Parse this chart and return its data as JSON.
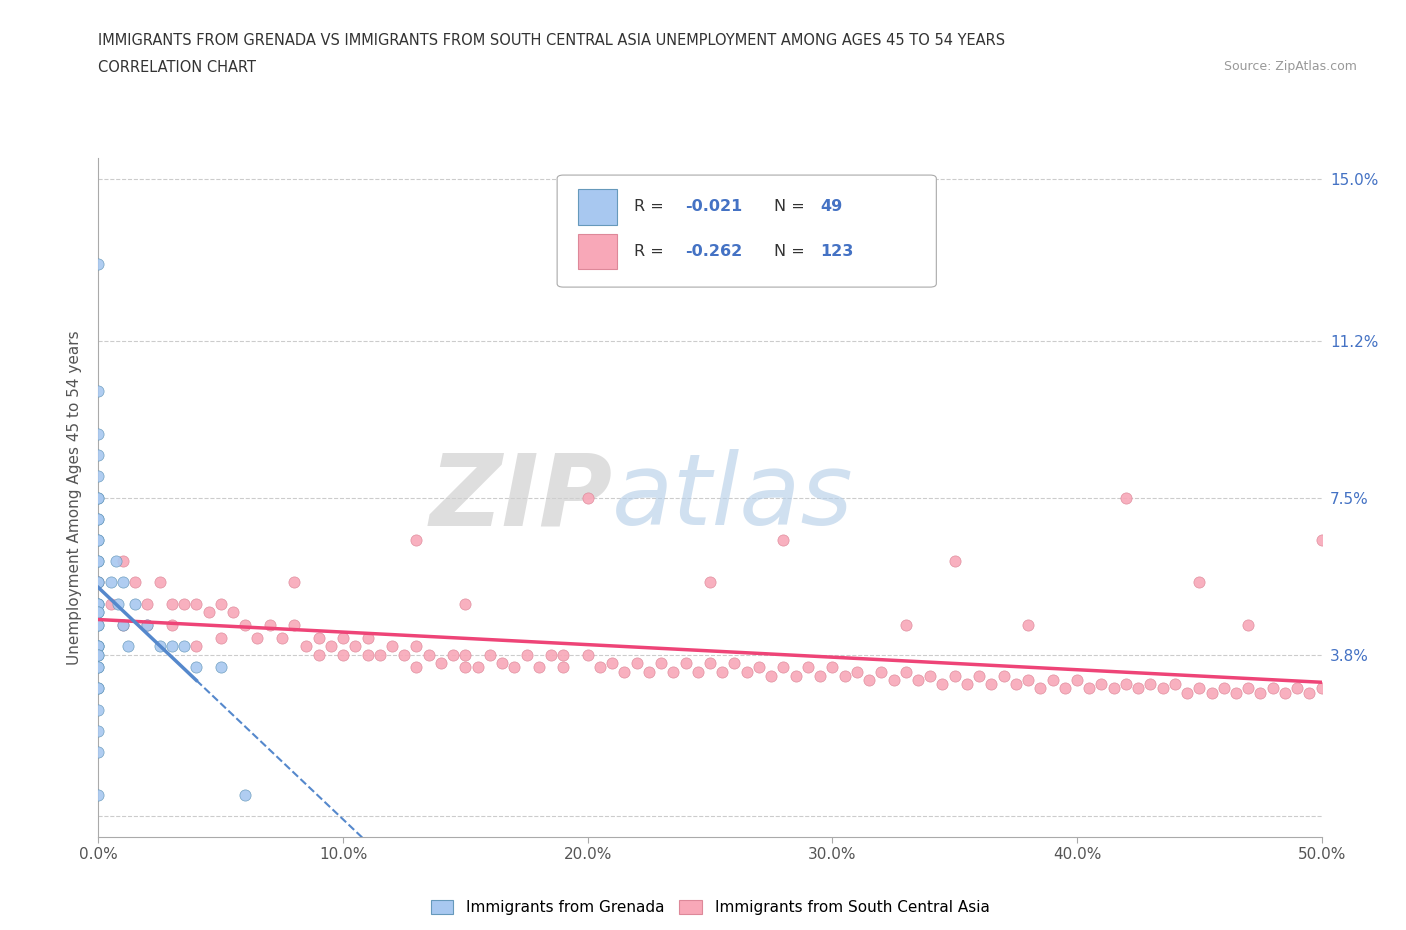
{
  "title_line1": "IMMIGRANTS FROM GRENADA VS IMMIGRANTS FROM SOUTH CENTRAL ASIA UNEMPLOYMENT AMONG AGES 45 TO 54 YEARS",
  "title_line2": "CORRELATION CHART",
  "source_text": "Source: ZipAtlas.com",
  "ylabel": "Unemployment Among Ages 45 to 54 years",
  "xmin": 0.0,
  "xmax": 0.5,
  "ymin": -0.005,
  "ymax": 0.155,
  "ytick_vals": [
    0.0,
    0.038,
    0.075,
    0.112,
    0.15
  ],
  "ytick_labels": [
    "",
    "3.8%",
    "7.5%",
    "11.2%",
    "15.0%"
  ],
  "xtick_vals": [
    0.0,
    0.1,
    0.2,
    0.3,
    0.4,
    0.5
  ],
  "xtick_labels": [
    "0.0%",
    "10.0%",
    "20.0%",
    "30.0%",
    "40.0%",
    "50.0%"
  ],
  "color_grenada": "#a8c8f0",
  "color_sca": "#f8a8b8",
  "trend_color_grenada": "#5588cc",
  "trend_color_sca": "#ee4477",
  "grenada_x": [
    0.0,
    0.0,
    0.0,
    0.0,
    0.0,
    0.0,
    0.0,
    0.0,
    0.0,
    0.0,
    0.0,
    0.0,
    0.0,
    0.0,
    0.0,
    0.0,
    0.0,
    0.0,
    0.0,
    0.0,
    0.0,
    0.0,
    0.0,
    0.0,
    0.0,
    0.0,
    0.0,
    0.0,
    0.0,
    0.0,
    0.0,
    0.0,
    0.0,
    0.0,
    0.0,
    0.005,
    0.007,
    0.008,
    0.01,
    0.01,
    0.012,
    0.015,
    0.02,
    0.025,
    0.03,
    0.035,
    0.04,
    0.05,
    0.06
  ],
  "grenada_y": [
    0.13,
    0.1,
    0.09,
    0.085,
    0.08,
    0.075,
    0.075,
    0.07,
    0.07,
    0.065,
    0.065,
    0.06,
    0.06,
    0.055,
    0.055,
    0.05,
    0.05,
    0.05,
    0.048,
    0.048,
    0.045,
    0.045,
    0.04,
    0.04,
    0.04,
    0.038,
    0.038,
    0.035,
    0.035,
    0.03,
    0.03,
    0.025,
    0.02,
    0.015,
    0.005,
    0.055,
    0.06,
    0.05,
    0.055,
    0.045,
    0.04,
    0.05,
    0.045,
    0.04,
    0.04,
    0.04,
    0.035,
    0.035,
    0.005
  ],
  "sca_x": [
    0.0,
    0.005,
    0.01,
    0.01,
    0.015,
    0.02,
    0.02,
    0.025,
    0.03,
    0.03,
    0.035,
    0.04,
    0.04,
    0.045,
    0.05,
    0.05,
    0.055,
    0.06,
    0.065,
    0.07,
    0.075,
    0.08,
    0.085,
    0.09,
    0.09,
    0.095,
    0.1,
    0.1,
    0.105,
    0.11,
    0.11,
    0.115,
    0.12,
    0.125,
    0.13,
    0.13,
    0.135,
    0.14,
    0.145,
    0.15,
    0.15,
    0.155,
    0.16,
    0.165,
    0.17,
    0.175,
    0.18,
    0.185,
    0.19,
    0.19,
    0.2,
    0.205,
    0.21,
    0.215,
    0.22,
    0.225,
    0.23,
    0.235,
    0.24,
    0.245,
    0.25,
    0.255,
    0.26,
    0.265,
    0.27,
    0.275,
    0.28,
    0.285,
    0.29,
    0.295,
    0.3,
    0.305,
    0.31,
    0.315,
    0.32,
    0.325,
    0.33,
    0.335,
    0.34,
    0.345,
    0.35,
    0.355,
    0.36,
    0.365,
    0.37,
    0.375,
    0.38,
    0.385,
    0.39,
    0.395,
    0.4,
    0.405,
    0.41,
    0.415,
    0.42,
    0.425,
    0.43,
    0.435,
    0.44,
    0.445,
    0.45,
    0.455,
    0.46,
    0.465,
    0.47,
    0.475,
    0.48,
    0.485,
    0.49,
    0.495,
    0.5,
    0.13,
    0.2,
    0.28,
    0.42,
    0.5,
    0.35,
    0.25,
    0.15,
    0.45,
    0.08,
    0.33,
    0.38,
    0.47
  ],
  "sca_y": [
    0.055,
    0.05,
    0.06,
    0.045,
    0.055,
    0.05,
    0.045,
    0.055,
    0.05,
    0.045,
    0.05,
    0.05,
    0.04,
    0.048,
    0.05,
    0.042,
    0.048,
    0.045,
    0.042,
    0.045,
    0.042,
    0.045,
    0.04,
    0.042,
    0.038,
    0.04,
    0.042,
    0.038,
    0.04,
    0.038,
    0.042,
    0.038,
    0.04,
    0.038,
    0.04,
    0.035,
    0.038,
    0.036,
    0.038,
    0.035,
    0.038,
    0.035,
    0.038,
    0.036,
    0.035,
    0.038,
    0.035,
    0.038,
    0.035,
    0.038,
    0.038,
    0.035,
    0.036,
    0.034,
    0.036,
    0.034,
    0.036,
    0.034,
    0.036,
    0.034,
    0.036,
    0.034,
    0.036,
    0.034,
    0.035,
    0.033,
    0.035,
    0.033,
    0.035,
    0.033,
    0.035,
    0.033,
    0.034,
    0.032,
    0.034,
    0.032,
    0.034,
    0.032,
    0.033,
    0.031,
    0.033,
    0.031,
    0.033,
    0.031,
    0.033,
    0.031,
    0.032,
    0.03,
    0.032,
    0.03,
    0.032,
    0.03,
    0.031,
    0.03,
    0.031,
    0.03,
    0.031,
    0.03,
    0.031,
    0.029,
    0.03,
    0.029,
    0.03,
    0.029,
    0.03,
    0.029,
    0.03,
    0.029,
    0.03,
    0.029,
    0.03,
    0.065,
    0.075,
    0.065,
    0.075,
    0.065,
    0.06,
    0.055,
    0.05,
    0.055,
    0.055,
    0.045,
    0.045,
    0.045
  ]
}
